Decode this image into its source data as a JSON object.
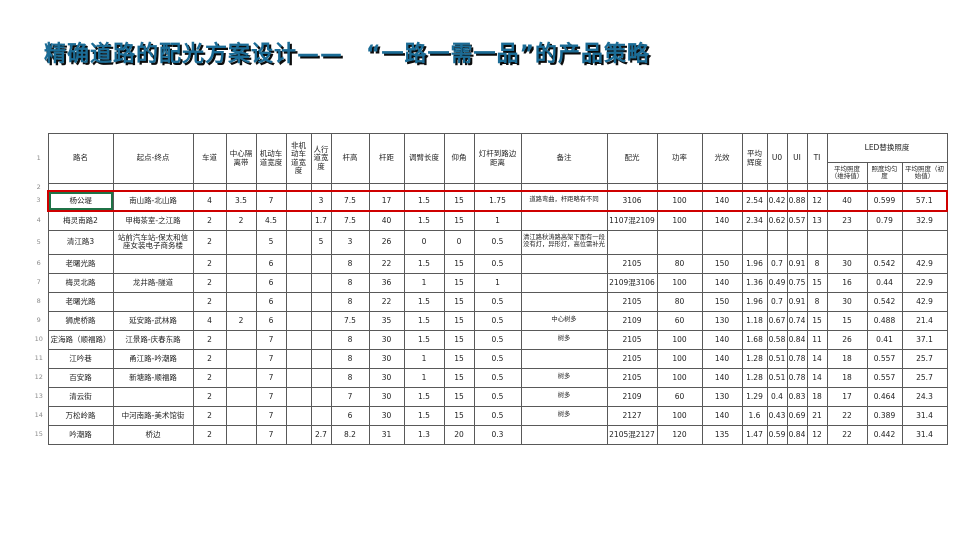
{
  "slide": {
    "title": "精确道路的配光方案设计——　“一路一需一品”的产品策略"
  },
  "colors": {
    "title_text": "#1b6c96",
    "title_shadow": "#0c0c0c",
    "highlight_border": "#cf0000",
    "selection_border": "#1f7246",
    "grid_line": "#595959"
  },
  "table": {
    "row_numbers": [
      "1",
      "2",
      "3",
      "4",
      "5",
      "6",
      "7",
      "8",
      "9",
      "10",
      "11",
      "12",
      "13",
      "14",
      "15"
    ],
    "columns": [
      "路名",
      "起点-终点",
      "车道",
      "中心隔离带",
      "机动车道宽度",
      "非机动车道宽度",
      "人行道宽度",
      "杆高",
      "杆距",
      "调臂长度",
      "仰角",
      "灯杆到路边距离",
      "备注",
      "配光",
      "功率",
      "光效",
      "平均辉度",
      "U0",
      "UI",
      "TI"
    ],
    "led_group": {
      "label": "LED替换照度",
      "sub": [
        "平均照度（维持值）",
        "照度均匀度",
        "平均照度（初始值）"
      ]
    },
    "rows": [
      {
        "highlight": true,
        "cells": [
          "杨公堤",
          "南山路-北山路",
          "4",
          "3.5",
          "7",
          "",
          "3",
          "7.5",
          "17",
          "1.5",
          "15",
          "1.75",
          "道路弯曲，杆距略有不同",
          "3106",
          "100",
          "140",
          "2.54",
          "0.42",
          "0.88",
          "12",
          "40",
          "0.599",
          "57.1"
        ]
      },
      {
        "cells": [
          "梅灵南路2",
          "甲梅茶室-之江路",
          "2",
          "2",
          "4.5",
          "",
          "1.7",
          "7.5",
          "40",
          "1.5",
          "15",
          "1",
          "",
          "1107混2109",
          "100",
          "140",
          "2.34",
          "0.62",
          "0.57",
          "13",
          "23",
          "0.79",
          "32.9"
        ]
      },
      {
        "tall": true,
        "cells": [
          "清江路3",
          "站前汽车站-保太和信座女装电子商务楼",
          "2",
          "",
          "5",
          "",
          "5",
          "3",
          "26",
          "0",
          "0",
          "0.5",
          "清江路秋涛路高架下面有一段没有灯，异形灯，高位需补光",
          "",
          "",
          "",
          "",
          "",
          "",
          "",
          "",
          "",
          ""
        ]
      },
      {
        "cells": [
          "老曙光路",
          "",
          "2",
          "",
          "6",
          "",
          "",
          "8",
          "22",
          "1.5",
          "15",
          "0.5",
          "",
          "2105",
          "80",
          "150",
          "1.96",
          "0.7",
          "0.91",
          "8",
          "30",
          "0.542",
          "42.9"
        ]
      },
      {
        "cells": [
          "梅灵北路",
          "龙井路-隧道",
          "2",
          "",
          "6",
          "",
          "",
          "8",
          "36",
          "1",
          "15",
          "1",
          "",
          "2109混3106",
          "100",
          "140",
          "1.36",
          "0.49",
          "0.75",
          "15",
          "16",
          "0.44",
          "22.9"
        ]
      },
      {
        "cells": [
          "老曙光路",
          "",
          "2",
          "",
          "6",
          "",
          "",
          "8",
          "22",
          "1.5",
          "15",
          "0.5",
          "",
          "2105",
          "80",
          "150",
          "1.96",
          "0.7",
          "0.91",
          "8",
          "30",
          "0.542",
          "42.9"
        ]
      },
      {
        "cells": [
          "狮虎桥路",
          "延安路-武林路",
          "4",
          "2",
          "6",
          "",
          "",
          "7.5",
          "35",
          "1.5",
          "15",
          "0.5",
          "中心树多",
          "2109",
          "60",
          "130",
          "1.18",
          "0.67",
          "0.74",
          "15",
          "15",
          "0.488",
          "21.4"
        ]
      },
      {
        "cells": [
          "定海路（顺福路）",
          "江景路-庆春东路",
          "2",
          "",
          "7",
          "",
          "",
          "8",
          "30",
          "1.5",
          "15",
          "0.5",
          "树多",
          "2105",
          "100",
          "140",
          "1.68",
          "0.58",
          "0.84",
          "11",
          "26",
          "0.41",
          "37.1"
        ]
      },
      {
        "cells": [
          "江吟巷",
          "甬江路-吟潮路",
          "2",
          "",
          "7",
          "",
          "",
          "8",
          "30",
          "1",
          "15",
          "0.5",
          "",
          "2105",
          "100",
          "140",
          "1.28",
          "0.51",
          "0.78",
          "14",
          "18",
          "0.557",
          "25.7"
        ]
      },
      {
        "cells": [
          "百安路",
          "新塘路-顺福路",
          "2",
          "",
          "7",
          "",
          "",
          "8",
          "30",
          "1",
          "15",
          "0.5",
          "树多",
          "2105",
          "100",
          "140",
          "1.28",
          "0.51",
          "0.78",
          "14",
          "18",
          "0.557",
          "25.7"
        ]
      },
      {
        "cells": [
          "清云街",
          "",
          "2",
          "",
          "7",
          "",
          "",
          "7",
          "30",
          "1.5",
          "15",
          "0.5",
          "树多",
          "2109",
          "60",
          "130",
          "1.29",
          "0.4",
          "0.83",
          "18",
          "17",
          "0.464",
          "24.3"
        ]
      },
      {
        "cells": [
          "万松岭路",
          "中河南路-美术馆街",
          "2",
          "",
          "7",
          "",
          "",
          "6",
          "30",
          "1.5",
          "15",
          "0.5",
          "树多",
          "2127",
          "100",
          "140",
          "1.6",
          "0.43",
          "0.69",
          "21",
          "22",
          "0.389",
          "31.4"
        ]
      },
      {
        "cells": [
          "吟潮路",
          "桥边",
          "2",
          "",
          "7",
          "",
          "2.7",
          "8.2",
          "31",
          "1.3",
          "20",
          "0.3",
          "",
          "2105混2127",
          "120",
          "135",
          "1.47",
          "0.59",
          "0.84",
          "12",
          "22",
          "0.442",
          "31.4"
        ]
      }
    ]
  }
}
